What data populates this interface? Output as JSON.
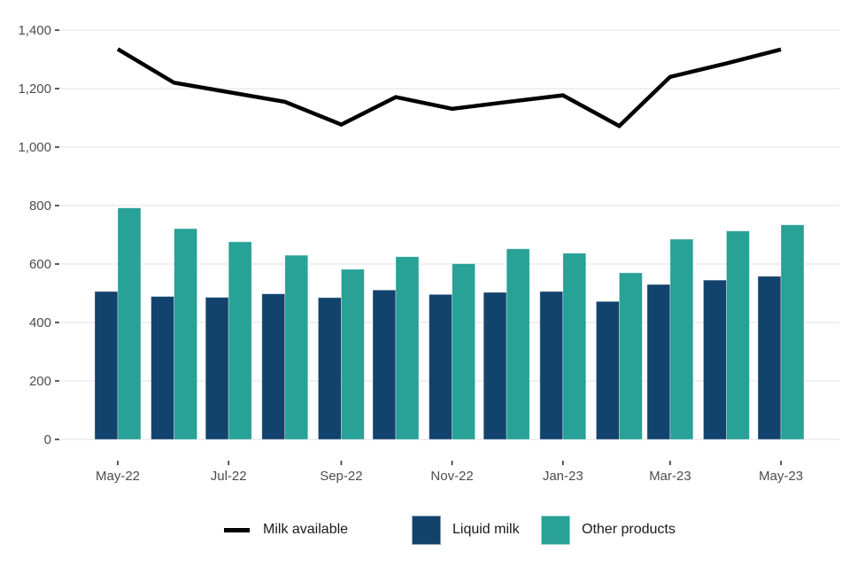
{
  "chart_data": {
    "type": "bar",
    "title": "",
    "xlabel": "",
    "ylabel": "",
    "ylim": [
      0,
      1400
    ],
    "yticks": [
      0,
      200,
      400,
      600,
      800,
      1000,
      1200,
      1400
    ],
    "ytick_labels": [
      "0",
      "200",
      "400",
      "600",
      "800",
      "1,000",
      "1,200",
      "1,400"
    ],
    "grid": true,
    "legend_position": "bottom",
    "categories": [
      "2022-05-01",
      "2022-06-01",
      "2022-07-01",
      "2022-08-01",
      "2022-09-01",
      "2022-10-01",
      "2022-11-01",
      "2022-12-01",
      "2023-01-01",
      "2023-02-01",
      "2023-03-01",
      "2023-04-01",
      "2023-05-01"
    ],
    "xticks": [
      "2022-05-01",
      "2022-07-01",
      "2022-09-01",
      "2022-11-01",
      "2023-01-01",
      "2023-03-01",
      "2023-05-01"
    ],
    "xtick_labels": [
      "May-22",
      "Jul-22",
      "Sep-22",
      "Nov-22",
      "Jan-23",
      "Mar-23",
      "May-23"
    ],
    "series": [
      {
        "name": "Milk available",
        "type": "line",
        "color": "#000000",
        "values": [
          1335,
          1220,
          1188,
          1155,
          1077,
          1171,
          1131,
          1154,
          1177,
          1072,
          1240,
          1286,
          1334
        ]
      },
      {
        "name": "Liquid milk",
        "type": "bar",
        "color": "#12436D",
        "values": [
          506,
          489,
          486,
          498,
          485,
          511,
          496,
          503,
          506,
          472,
          530,
          545,
          558
        ]
      },
      {
        "name": "Other products",
        "type": "bar",
        "color": "#28A197",
        "values": [
          792,
          721,
          676,
          630,
          582,
          625,
          601,
          652,
          637,
          570,
          685,
          713,
          734
        ]
      }
    ]
  },
  "legend": {
    "items": [
      {
        "label": "Milk available",
        "kind": "line",
        "color": "#000000"
      },
      {
        "label": "Liquid milk",
        "kind": "swatch",
        "color": "#12436D"
      },
      {
        "label": "Other products",
        "kind": "swatch",
        "color": "#28A197"
      }
    ]
  }
}
